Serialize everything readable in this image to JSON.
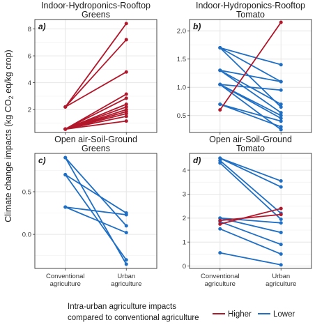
{
  "y_axis_label_prefix": "Climate change impacts (kg CO",
  "y_axis_label_sub": "2",
  "y_axis_label_suffix": " eq/kg crop)",
  "colors": {
    "higher": "#b2182b",
    "lower": "#1f6fc4",
    "grid": "#e6e6e6",
    "panel_border": "#333333"
  },
  "legend": {
    "title_line1": "Intra-urban agriculture impacts",
    "title_line2": "compared to conventional agriculture",
    "items": [
      {
        "key": "higher",
        "label": "Higher"
      },
      {
        "key": "lower",
        "label": "Lower"
      }
    ]
  },
  "chart_data": [
    {
      "type": "line",
      "tag": "a)",
      "title_line1": "Indoor-Hydroponics-Rooftop",
      "title_line2": "Greens",
      "categories": [
        "Conventional agriculture",
        "Urban agriculture"
      ],
      "ylim": [
        0.3,
        8.7
      ],
      "yticks": [
        2,
        4,
        6,
        8
      ],
      "yticklabels": [
        "2",
        "4",
        "6",
        "8"
      ],
      "show_x_labels": false,
      "pairs": [
        {
          "from": 2.2,
          "to": 8.4,
          "group": "higher"
        },
        {
          "from": 2.2,
          "to": 7.2,
          "group": "higher"
        },
        {
          "from": 2.2,
          "to": 4.8,
          "group": "higher"
        },
        {
          "from": 0.55,
          "to": 3.15,
          "group": "higher"
        },
        {
          "from": 0.55,
          "to": 2.85,
          "group": "higher"
        },
        {
          "from": 0.55,
          "to": 2.4,
          "group": "higher"
        },
        {
          "from": 0.55,
          "to": 2.2,
          "group": "higher"
        },
        {
          "from": 0.55,
          "to": 2.0,
          "group": "higher"
        },
        {
          "from": 0.55,
          "to": 1.85,
          "group": "higher"
        },
        {
          "from": 0.55,
          "to": 1.7,
          "group": "higher"
        },
        {
          "from": 0.55,
          "to": 1.5,
          "group": "higher"
        },
        {
          "from": 0.55,
          "to": 1.15,
          "group": "higher"
        }
      ]
    },
    {
      "type": "line",
      "tag": "b)",
      "title_line1": "Indoor-Hydroponics-Rooftop",
      "title_line2": "Tomato",
      "categories": [
        "Conventional agriculture",
        "Urban agriculture"
      ],
      "ylim": [
        0.2,
        2.2
      ],
      "yticks": [
        0.5,
        1.0,
        1.5,
        2.0
      ],
      "yticklabels": [
        "0.5",
        "1.0",
        "1.5",
        "2.0"
      ],
      "show_x_labels": false,
      "pairs": [
        {
          "from": 0.6,
          "to": 2.15,
          "group": "higher"
        },
        {
          "from": 1.7,
          "to": 1.4,
          "group": "lower"
        },
        {
          "from": 1.7,
          "to": 1.1,
          "group": "lower"
        },
        {
          "from": 1.7,
          "to": 0.65,
          "group": "lower"
        },
        {
          "from": 1.3,
          "to": 1.1,
          "group": "lower"
        },
        {
          "from": 1.3,
          "to": 0.7,
          "group": "lower"
        },
        {
          "from": 1.3,
          "to": 0.55,
          "group": "lower"
        },
        {
          "from": 1.05,
          "to": 0.95,
          "group": "lower"
        },
        {
          "from": 1.05,
          "to": 0.5,
          "group": "lower"
        },
        {
          "from": 1.05,
          "to": 0.45,
          "group": "lower"
        },
        {
          "from": 0.7,
          "to": 0.4,
          "group": "lower"
        },
        {
          "from": 0.7,
          "to": 0.3,
          "group": "lower"
        },
        {
          "from": 1.05,
          "to": 0.25,
          "group": "lower"
        }
      ]
    },
    {
      "type": "line",
      "tag": "c)",
      "title_line1": "Open air-Soil-Ground",
      "title_line2": "Greens",
      "categories": [
        "Conventional agriculture",
        "Urban agriculture"
      ],
      "ylim": [
        -0.4,
        0.95
      ],
      "yticks": [
        0.0,
        0.5
      ],
      "yticklabels": [
        "0.0",
        "0.5"
      ],
      "show_x_labels": true,
      "pairs": [
        {
          "from": 0.9,
          "to": 0.1,
          "group": "lower"
        },
        {
          "from": 0.9,
          "to": -0.35,
          "group": "lower"
        },
        {
          "from": 0.7,
          "to": 0.25,
          "group": "lower"
        },
        {
          "from": 0.7,
          "to": -0.3,
          "group": "lower"
        },
        {
          "from": 0.32,
          "to": 0.23,
          "group": "lower"
        },
        {
          "from": 0.32,
          "to": 0.02,
          "group": "lower"
        }
      ]
    },
    {
      "type": "line",
      "tag": "d)",
      "title_line1": "Open air-Soil-Ground",
      "title_line2": "Tomato",
      "categories": [
        "Conventional agriculture",
        "Urban agriculture"
      ],
      "ylim": [
        -0.1,
        4.7
      ],
      "yticks": [
        0,
        1,
        2,
        3,
        4
      ],
      "yticklabels": [
        "0",
        "1",
        "2",
        "3",
        "4"
      ],
      "show_x_labels": true,
      "pairs": [
        {
          "from": 1.75,
          "to": 2.4,
          "group": "higher"
        },
        {
          "from": 1.9,
          "to": 2.15,
          "group": "higher"
        },
        {
          "from": 4.5,
          "to": 3.55,
          "group": "lower"
        },
        {
          "from": 4.5,
          "to": 3.3,
          "group": "lower"
        },
        {
          "from": 4.4,
          "to": 2.2,
          "group": "lower"
        },
        {
          "from": 4.3,
          "to": 1.95,
          "group": "lower"
        },
        {
          "from": 2.0,
          "to": 1.8,
          "group": "lower"
        },
        {
          "from": 2.0,
          "to": 1.4,
          "group": "lower"
        },
        {
          "from": 1.85,
          "to": 0.9,
          "group": "lower"
        },
        {
          "from": 1.55,
          "to": 0.5,
          "group": "lower"
        },
        {
          "from": 0.55,
          "to": 0.05,
          "group": "lower"
        }
      ]
    }
  ]
}
